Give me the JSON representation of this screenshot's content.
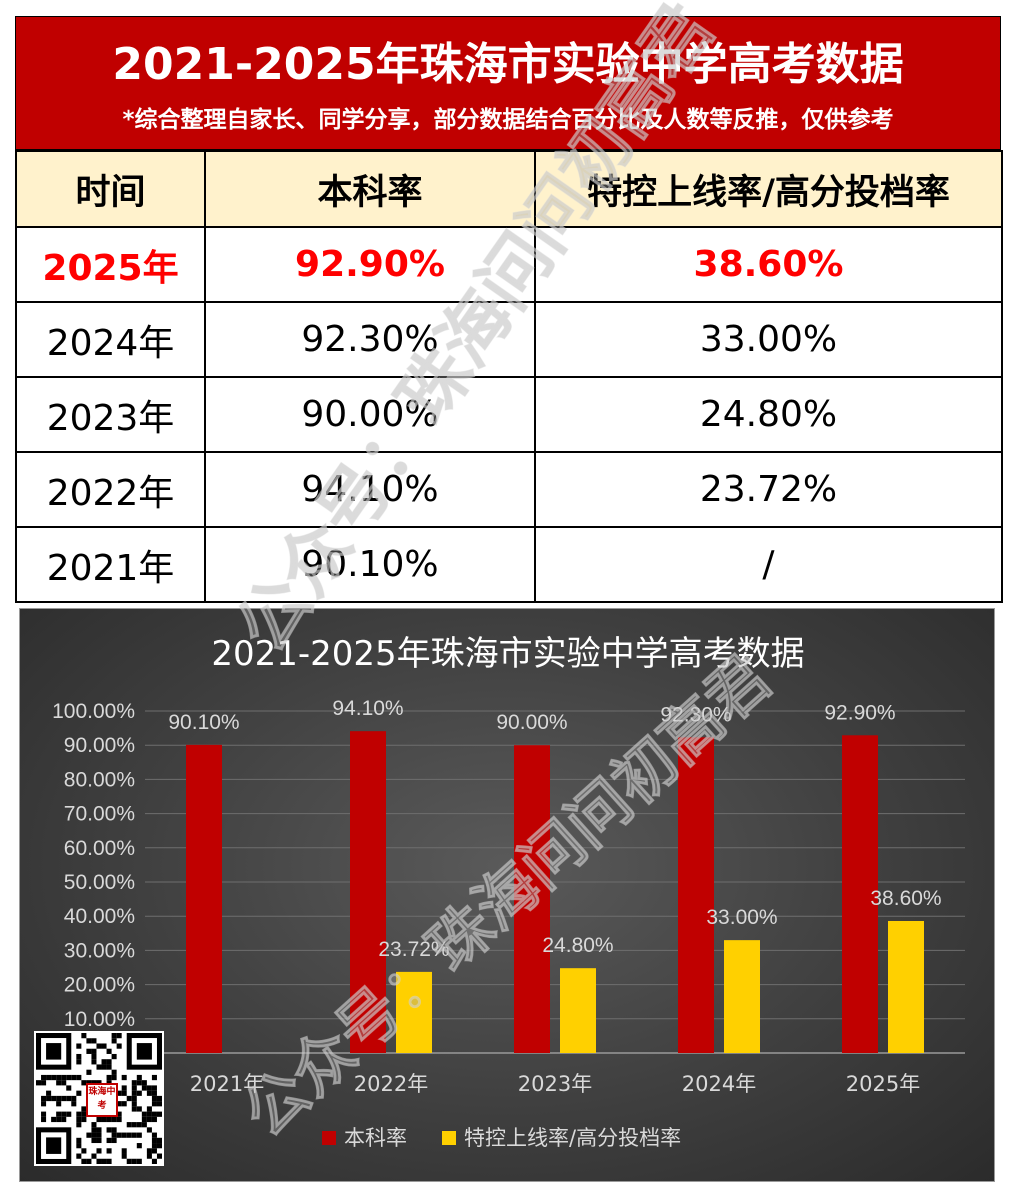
{
  "header": {
    "title": "2021-2025年珠海市实验中学高考数据",
    "subtitle": "*综合整理自家长、同学分享，部分数据结合百分比及人数等反推，仅供参考"
  },
  "table": {
    "columns": [
      "时间",
      "本科率",
      "特控上线率/高分投档率"
    ],
    "rows": [
      [
        "2025年",
        "92.90%",
        "38.60%"
      ],
      [
        "2024年",
        "92.30%",
        "33.00%"
      ],
      [
        "2023年",
        "90.00%",
        "24.80%"
      ],
      [
        "2022年",
        "94.10%",
        "23.72%"
      ],
      [
        "2021年",
        "90.10%",
        "/"
      ]
    ]
  },
  "chart_data": {
    "type": "bar",
    "title": "2021-2025年珠海市实验中学高考数据",
    "categories": [
      "2021年",
      "2022年",
      "2023年",
      "2024年",
      "2025年"
    ],
    "series": [
      {
        "name": "本科率",
        "values": [
          90.1,
          94.1,
          90.0,
          92.3,
          92.9
        ],
        "labels": [
          "90.10%",
          "94.10%",
          "90.00%",
          "92.30%",
          "92.90%"
        ],
        "color": "#c00000"
      },
      {
        "name": "特控上线率/高分投档率",
        "values": [
          null,
          23.72,
          24.8,
          33.0,
          38.6
        ],
        "labels": [
          "",
          "23.72%",
          "24.80%",
          "33.00%",
          "38.60%"
        ],
        "color": "#ffd000"
      }
    ],
    "ylim": [
      0,
      100
    ],
    "yticks": [
      "10.00%",
      "20.00%",
      "30.00%",
      "40.00%",
      "50.00%",
      "60.00%",
      "70.00%",
      "80.00%",
      "90.00%",
      "100.00%"
    ],
    "grid": true,
    "legend": "bottom"
  },
  "watermarks": [
    "公众号：珠海问问初高君",
    "公众号：珠海问问初高君"
  ],
  "qr_logo_text": "珠海中考",
  "colors": {
    "header_red": "#c00000",
    "header_row_bg": "#fff2cc",
    "highlight_red": "#ff0000",
    "bar_red": "#c00000",
    "bar_yellow": "#ffd000"
  }
}
